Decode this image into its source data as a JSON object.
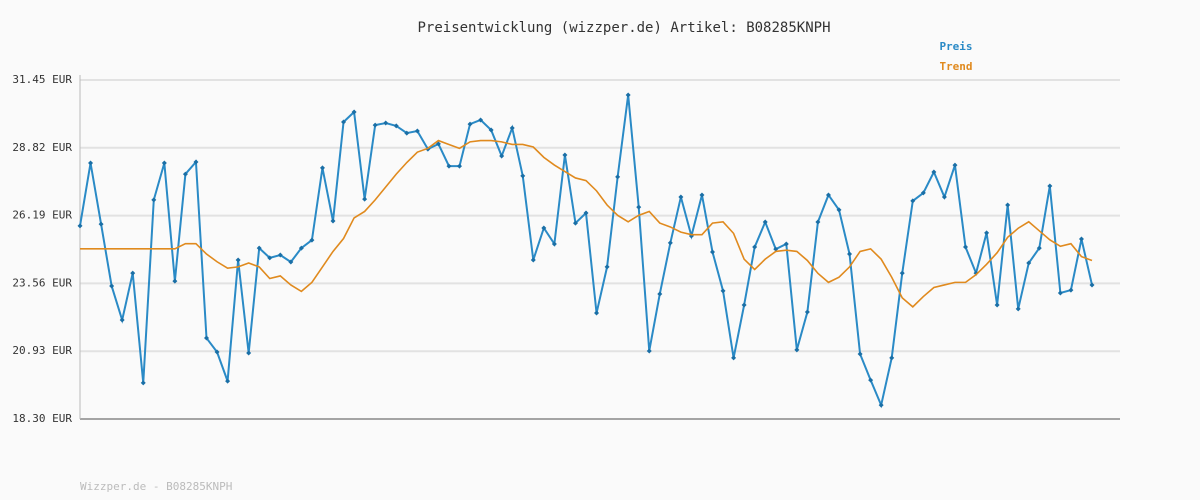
{
  "chart_data": {
    "type": "line",
    "title": "Preisentwicklung (wizzper.de) Artikel: B08285KNPH",
    "footer": "Wizzper.de - B08285KNPH",
    "ylim": [
      18.3,
      31.45
    ],
    "yticks": [
      {
        "value": 18.3,
        "label": "18.30 EUR"
      },
      {
        "value": 20.93,
        "label": "20.93 EUR"
      },
      {
        "value": 23.56,
        "label": "23.56 EUR"
      },
      {
        "value": 26.19,
        "label": "26.19 EUR"
      },
      {
        "value": 28.82,
        "label": "28.82 EUR"
      },
      {
        "value": 31.45,
        "label": "31.45 EUR"
      }
    ],
    "grid": true,
    "legend": "top-right",
    "series": [
      {
        "name": "Preis",
        "color": "#2a8ac6",
        "markers": true,
        "values": [
          25.79,
          28.23,
          25.86,
          23.46,
          22.14,
          23.96,
          19.7,
          26.8,
          28.23,
          23.65,
          27.8,
          28.27,
          21.44,
          20.9,
          19.77,
          24.47,
          20.86,
          24.93,
          24.55,
          24.66,
          24.39,
          24.93,
          25.24,
          28.04,
          25.98,
          29.82,
          30.21,
          26.83,
          29.7,
          29.78,
          29.67,
          29.39,
          29.47,
          28.77,
          28.97,
          28.11,
          28.11,
          29.74,
          29.9,
          29.51,
          28.5,
          29.59,
          27.73,
          24.47,
          25.71,
          25.09,
          28.54,
          25.9,
          26.29,
          22.41,
          24.2,
          27.69,
          30.87,
          26.52,
          20.94,
          23.15,
          25.13,
          26.91,
          25.4,
          26.99,
          24.78,
          23.27,
          20.67,
          22.72,
          24.97,
          25.94,
          24.89,
          25.09,
          20.98,
          22.45,
          25.94,
          26.99,
          26.41,
          24.7,
          20.82,
          19.81,
          18.84,
          20.67,
          23.96,
          26.76,
          27.07,
          27.88,
          26.91,
          28.15,
          24.97,
          23.96,
          25.52,
          22.72,
          26.6,
          22.57,
          24.35,
          24.93,
          27.34,
          23.19,
          23.3,
          25.28,
          23.5
        ]
      },
      {
        "name": "Trend",
        "color": "#e08a1e",
        "markers": false,
        "values": [
          24.9,
          24.9,
          24.9,
          24.9,
          24.9,
          24.9,
          24.9,
          24.9,
          24.9,
          24.9,
          25.1,
          25.1,
          24.7,
          24.4,
          24.15,
          24.2,
          24.35,
          24.2,
          23.75,
          23.85,
          23.5,
          23.25,
          23.6,
          24.2,
          24.8,
          25.3,
          26.1,
          26.35,
          26.8,
          27.3,
          27.8,
          28.25,
          28.65,
          28.8,
          29.1,
          28.95,
          28.8,
          29.05,
          29.1,
          29.1,
          29.05,
          28.95,
          28.95,
          28.85,
          28.45,
          28.15,
          27.9,
          27.65,
          27.55,
          27.15,
          26.6,
          26.2,
          25.95,
          26.2,
          26.35,
          25.9,
          25.75,
          25.55,
          25.45,
          25.45,
          25.9,
          25.95,
          25.5,
          24.5,
          24.1,
          24.5,
          24.8,
          24.85,
          24.8,
          24.45,
          23.95,
          23.6,
          23.8,
          24.2,
          24.8,
          24.9,
          24.5,
          23.8,
          23.0,
          22.65,
          23.05,
          23.4,
          23.5,
          23.6,
          23.6,
          23.9,
          24.3,
          24.75,
          25.35,
          25.7,
          25.95,
          25.6,
          25.25,
          25.0,
          25.1,
          24.6,
          24.45
        ]
      }
    ]
  }
}
